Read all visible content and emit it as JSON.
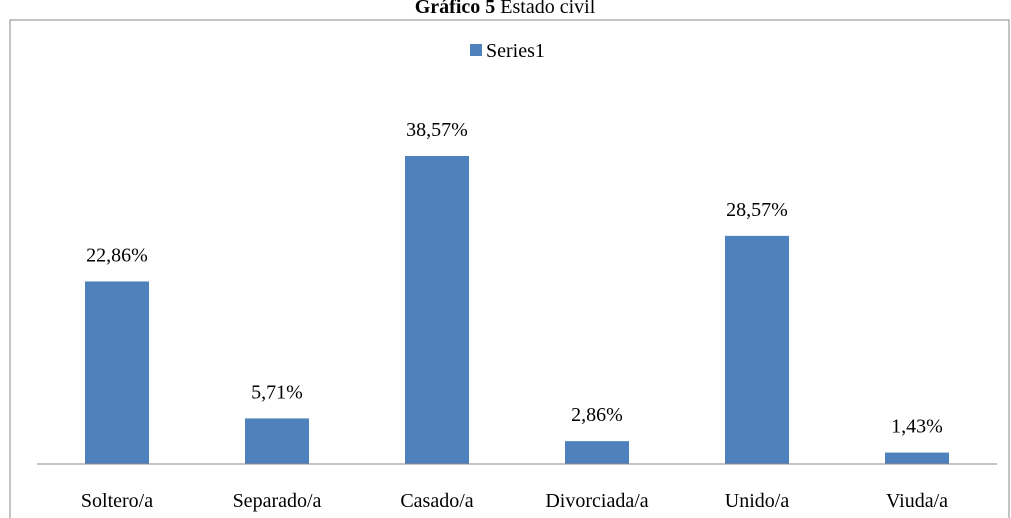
{
  "chart_data": {
    "type": "bar",
    "title_label": "Gráfico 5",
    "title": "Estado civil",
    "categories": [
      "Soltero/a",
      "Separado/a",
      "Casado/a",
      "Divorciada/a",
      "Unido/a",
      "Viuda/a"
    ],
    "series": [
      {
        "name": "Series1",
        "color": "#4f81bd",
        "values": [
          22.86,
          5.71,
          38.57,
          2.86,
          28.57,
          1.43
        ],
        "value_labels": [
          "22,86%",
          "5,71%",
          "38,57%",
          "2,86%",
          "28,57%",
          "1,43%"
        ]
      }
    ],
    "legend": "top"
  }
}
